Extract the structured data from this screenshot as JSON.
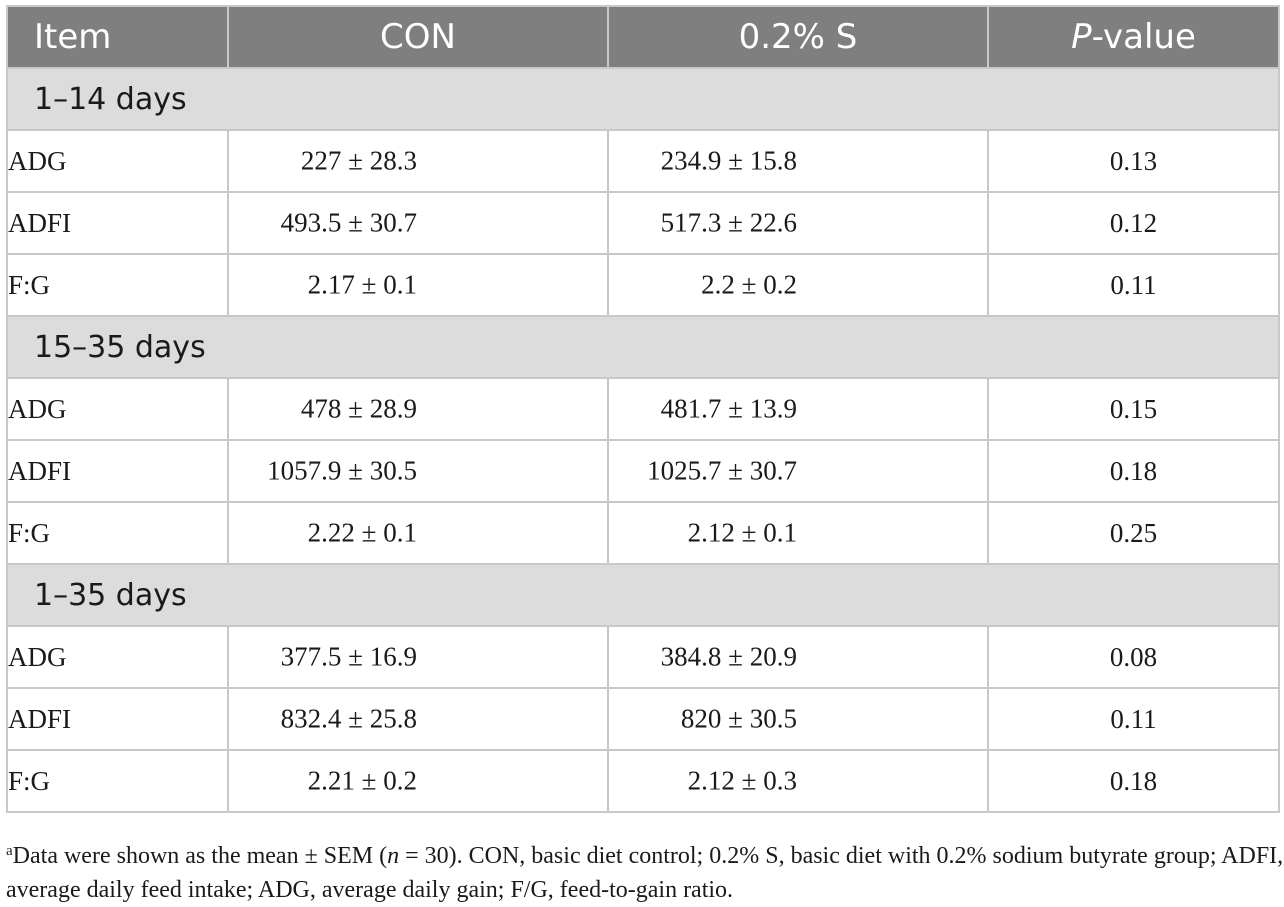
{
  "table": {
    "columns": [
      "Item",
      "CON",
      "0.2% S",
      "-value"
    ],
    "p_italic": "P",
    "sections": [
      {
        "label": "1–14 days",
        "rows": [
          {
            "item": "ADG",
            "con": "227 ± 28.3",
            "s": "234.9 ± 15.8",
            "p": "0.13"
          },
          {
            "item": "ADFI",
            "con": "493.5 ± 30.7",
            "s": "517.3 ± 22.6",
            "p": "0.12"
          },
          {
            "item": "F:G",
            "con": "2.17 ± 0.1",
            "s": "2.2 ± 0.2",
            "p": "0.11"
          }
        ]
      },
      {
        "label": "15–35 days",
        "rows": [
          {
            "item": "ADG",
            "con": "478 ± 28.9",
            "s": "481.7 ± 13.9",
            "p": "0.15"
          },
          {
            "item": "ADFI",
            "con": "1057.9 ± 30.5",
            "s": "1025.7 ± 30.7",
            "p": "0.18"
          },
          {
            "item": "F:G",
            "con": "2.22 ± 0.1",
            "s": "2.12 ± 0.1",
            "p": "0.25"
          }
        ]
      },
      {
        "label": "1–35 days",
        "rows": [
          {
            "item": "ADG",
            "con": "377.5 ± 16.9",
            "s": "384.8 ± 20.9",
            "p": "0.08"
          },
          {
            "item": "ADFI",
            "con": "832.4 ± 25.8",
            "s": "820 ± 30.5",
            "p": "0.11"
          },
          {
            "item": "F:G",
            "con": "2.21 ± 0.2",
            "s": "2.12 ± 0.3",
            "p": "0.18"
          }
        ]
      }
    ]
  },
  "footnote": {
    "marker": "a",
    "part1": "Data were shown as the mean ± SEM (",
    "n_italic": "n",
    "part2": " = 30). CON, basic diet control; 0.2% S, basic diet with 0.2% sodium butyrate group; ADFI, average daily feed intake; ADG, average daily gain; F/G, feed-to-gain ratio."
  }
}
